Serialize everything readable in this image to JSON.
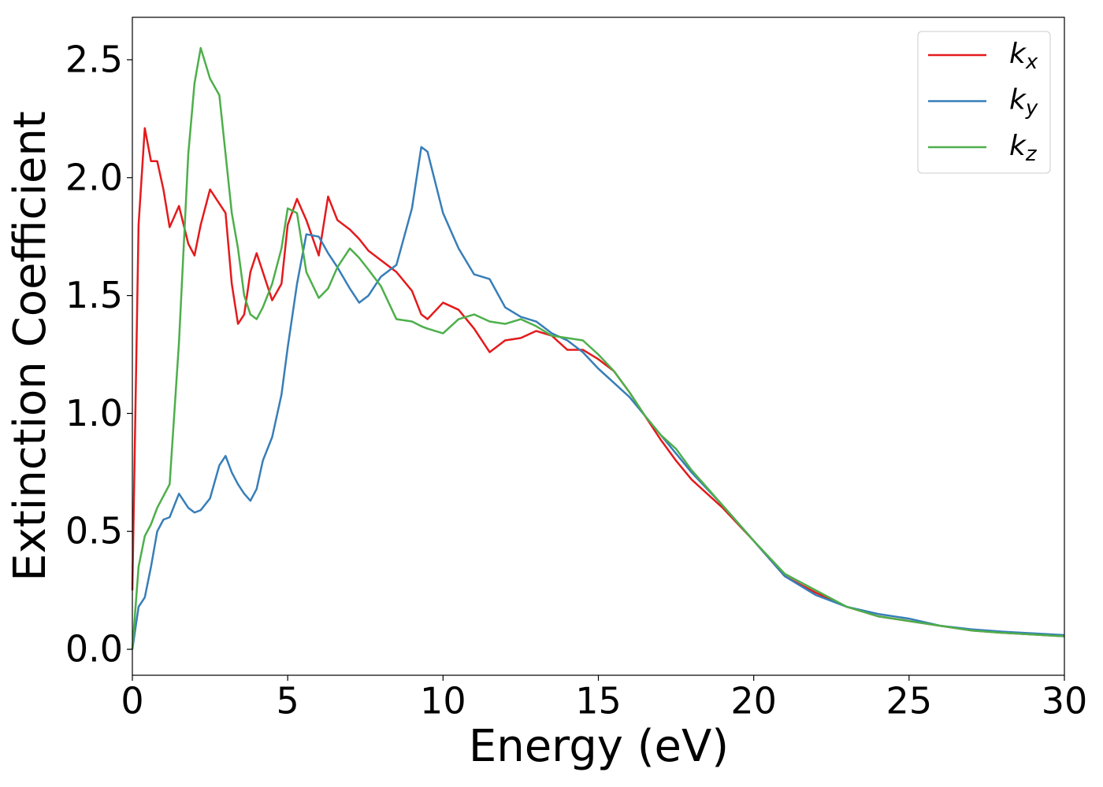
{
  "chart_data": {
    "type": "line",
    "xlabel": "Energy (eV)",
    "ylabel": "Extinction Coefficient",
    "x": [
      0,
      0.2,
      0.4,
      0.6,
      0.8,
      1.0,
      1.2,
      1.5,
      1.8,
      2.0,
      2.2,
      2.5,
      2.8,
      3.0,
      3.2,
      3.4,
      3.6,
      3.8,
      4.0,
      4.2,
      4.5,
      4.8,
      5.0,
      5.3,
      5.6,
      6.0,
      6.3,
      6.6,
      7.0,
      7.3,
      7.6,
      8.0,
      8.5,
      9.0,
      9.3,
      9.5,
      10.0,
      10.5,
      11.0,
      11.5,
      12.0,
      12.5,
      13.0,
      13.5,
      14.0,
      14.5,
      15.0,
      15.5,
      16.0,
      16.5,
      17.0,
      17.5,
      18.0,
      19.0,
      20.0,
      21.0,
      22.0,
      23.0,
      24.0,
      25.0,
      26.0,
      27.0,
      28.0,
      30.0
    ],
    "series": [
      {
        "name": "kx",
        "color": "#e41a1c",
        "values": [
          0.25,
          1.8,
          2.21,
          2.07,
          2.07,
          1.95,
          1.79,
          1.88,
          1.72,
          1.67,
          1.8,
          1.95,
          1.89,
          1.85,
          1.55,
          1.38,
          1.42,
          1.6,
          1.68,
          1.6,
          1.48,
          1.55,
          1.8,
          1.91,
          1.82,
          1.67,
          1.92,
          1.82,
          1.78,
          1.74,
          1.69,
          1.65,
          1.6,
          1.52,
          1.42,
          1.4,
          1.47,
          1.44,
          1.36,
          1.26,
          1.31,
          1.32,
          1.35,
          1.33,
          1.27,
          1.27,
          1.23,
          1.18,
          1.09,
          0.99,
          0.89,
          0.8,
          0.72,
          0.6,
          0.46,
          0.31,
          0.24,
          0.18,
          0.14,
          0.12,
          0.1,
          0.08,
          0.07,
          0.055
        ]
      },
      {
        "name": "ky",
        "color": "#377eb8",
        "values": [
          0,
          0.18,
          0.22,
          0.35,
          0.5,
          0.55,
          0.56,
          0.66,
          0.6,
          0.58,
          0.59,
          0.64,
          0.78,
          0.82,
          0.75,
          0.7,
          0.66,
          0.63,
          0.68,
          0.8,
          0.9,
          1.08,
          1.28,
          1.55,
          1.76,
          1.75,
          1.68,
          1.62,
          1.53,
          1.47,
          1.5,
          1.58,
          1.63,
          1.87,
          2.13,
          2.11,
          1.85,
          1.7,
          1.59,
          1.57,
          1.45,
          1.41,
          1.39,
          1.34,
          1.31,
          1.26,
          1.19,
          1.13,
          1.07,
          0.99,
          0.91,
          0.83,
          0.75,
          0.61,
          0.46,
          0.31,
          0.23,
          0.18,
          0.15,
          0.13,
          0.1,
          0.085,
          0.075,
          0.06
        ]
      },
      {
        "name": "kz",
        "color": "#4daf4a",
        "values": [
          0,
          0.35,
          0.48,
          0.53,
          0.6,
          0.65,
          0.7,
          1.3,
          2.1,
          2.4,
          2.55,
          2.42,
          2.35,
          2.1,
          1.85,
          1.7,
          1.5,
          1.42,
          1.4,
          1.45,
          1.55,
          1.7,
          1.87,
          1.85,
          1.6,
          1.49,
          1.53,
          1.62,
          1.7,
          1.66,
          1.61,
          1.54,
          1.4,
          1.39,
          1.37,
          1.36,
          1.34,
          1.4,
          1.42,
          1.39,
          1.38,
          1.4,
          1.37,
          1.33,
          1.32,
          1.31,
          1.25,
          1.18,
          1.09,
          0.99,
          0.91,
          0.85,
          0.76,
          0.61,
          0.46,
          0.32,
          0.25,
          0.18,
          0.14,
          0.12,
          0.1,
          0.08,
          0.07,
          0.055
        ]
      }
    ],
    "xlim": [
      0,
      30
    ],
    "xticks": [
      0,
      5,
      10,
      15,
      20,
      25,
      30
    ],
    "ylim": [
      -0.11,
      2.68
    ],
    "yticks": [
      {
        "value": 0,
        "label": "0.0"
      },
      0.5,
      {
        "value": 1,
        "label": "1.0"
      },
      1.5,
      {
        "value": 2,
        "label": "2.0"
      },
      2.5
    ],
    "legend": "upper right",
    "grid": false
  }
}
